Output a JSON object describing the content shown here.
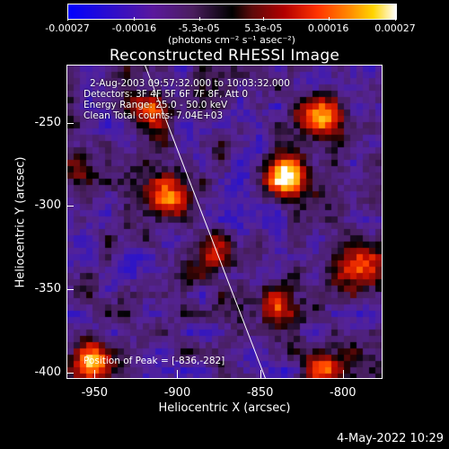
{
  "colorbar": {
    "tick_labels": [
      "-0.00027",
      "-0.00016",
      "-5.3e-05",
      "5.3e-05",
      "0.00016",
      "0.00027"
    ],
    "unit": "(photons cm⁻² s⁻¹ asec⁻²)"
  },
  "plot": {
    "title": "Reconstructed RHESSI Image",
    "info_lines": [
      "2-Aug-2003 09:57:32.000 to 10:03:32.000",
      "Detectors: 3F 4F 5F 6F 7F 8F, Att 0",
      "Energy Range: 25.0 - 50.0 keV",
      "Clean     Total counts: 7.04E+03"
    ],
    "peak_label": "Position of Peak = [-836,-282]",
    "xlabel": "Heliocentric X (arcsec)",
    "ylabel": "Heliocentric Y (arcsec)",
    "x_ticks": [
      "-950",
      "-900",
      "-850",
      "-800"
    ],
    "y_ticks": [
      "-250",
      "-300",
      "-350",
      "-400"
    ]
  },
  "chart_data": {
    "type": "heatmap",
    "title": "Reconstructed RHESSI Image",
    "xlabel": "Heliocentric X (arcsec)",
    "ylabel": "Heliocentric Y (arcsec)",
    "xlim": [
      -967,
      -776
    ],
    "ylim": [
      -404,
      -215
    ],
    "x_ticks": [
      -950,
      -900,
      -850,
      -800
    ],
    "y_ticks": [
      -250,
      -300,
      -350,
      -400
    ],
    "colorbar_range": [
      -0.00027,
      0.00027
    ],
    "colormap": "blue-purple-black-red-yellow-white",
    "peak_position": [
      -836,
      -282
    ],
    "limb_line": [
      [
        -920,
        -215
      ],
      [
        -847,
        -404
      ]
    ],
    "bright_sources": [
      {
        "x": -836,
        "y": -282,
        "level": 0.95
      },
      {
        "x": -815,
        "y": -245,
        "level": 0.75
      },
      {
        "x": -907,
        "y": -296,
        "level": 0.7
      },
      {
        "x": -916,
        "y": -244,
        "level": 0.6
      },
      {
        "x": -953,
        "y": -393,
        "level": 0.75
      },
      {
        "x": -792,
        "y": -334,
        "level": 0.55
      },
      {
        "x": -842,
        "y": -358,
        "level": 0.5
      },
      {
        "x": -812,
        "y": -398,
        "level": 0.5
      },
      {
        "x": -960,
        "y": -280,
        "level": 0.4
      },
      {
        "x": -880,
        "y": -330,
        "level": 0.4
      }
    ]
  },
  "footer": {
    "datestamp": "4-May-2022 10:29"
  }
}
